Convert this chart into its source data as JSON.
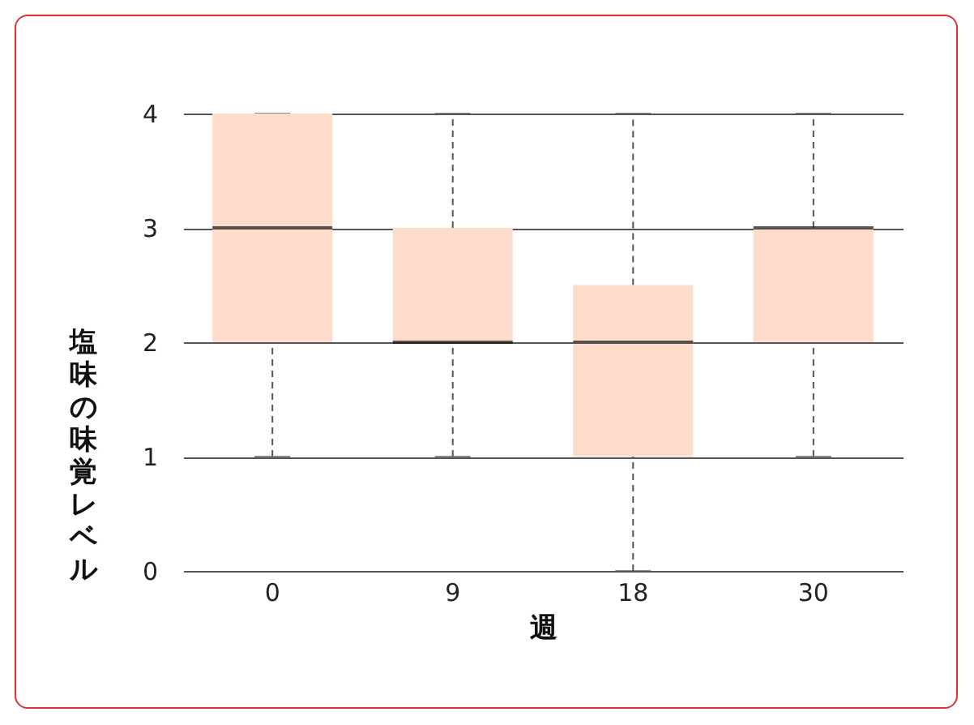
{
  "chart_data": {
    "type": "box",
    "xlabel": "週",
    "ylabel": "塩味の味覚レベル",
    "categories": [
      "0",
      "9",
      "18",
      "30"
    ],
    "series": [
      {
        "color": "#fddccc",
        "boxes": [
          {
            "low": 1,
            "q1": 2,
            "median": 3,
            "q3": 4,
            "high": 4
          },
          {
            "low": 1,
            "q1": 2,
            "median": 2,
            "q3": 3,
            "high": 4
          },
          {
            "low": 0,
            "q1": 1,
            "median": 2,
            "q3": 2.5,
            "high": 4
          },
          {
            "low": 1,
            "q1": 2,
            "median": 3,
            "q3": 3,
            "high": 4
          }
        ]
      }
    ],
    "ylim": [
      0,
      4
    ],
    "yticks": [
      0,
      1,
      2,
      3,
      4
    ],
    "grid": "y"
  }
}
